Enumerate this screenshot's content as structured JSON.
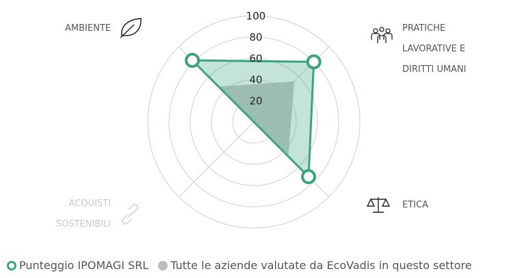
{
  "chart_data": {
    "type": "radar",
    "categories": [
      "AMBIENTE",
      "PRATICHE LAVORATIVE E DIRITTI UMANI",
      "ETICA",
      "ACQUISTI SOSTENIBILI"
    ],
    "series": [
      {
        "name": "Punteggio IPOMAGI SRL",
        "color": "#3aa57c",
        "values": [
          82,
          80,
          73,
          0
        ]
      },
      {
        "name": "Tutte le aziende valutate da EcoVadis in questo settore",
        "color": "#bdbdbd",
        "values": [
          47,
          54,
          46,
          0
        ]
      }
    ],
    "ylim": [
      0,
      100
    ],
    "yticks": [
      20,
      40,
      60,
      80,
      100
    ],
    "grid": true
  }
}
